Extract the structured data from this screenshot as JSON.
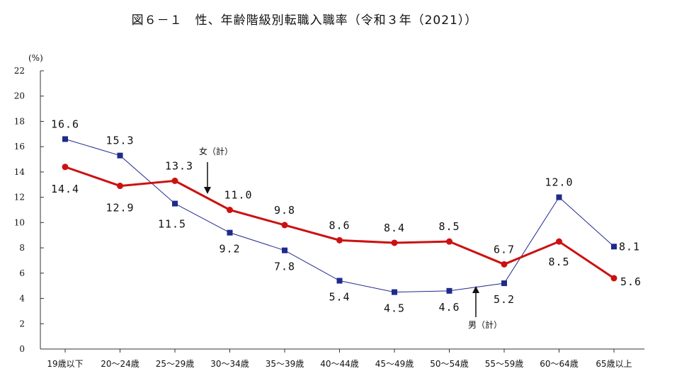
{
  "page": {
    "title": "図６－１　性、年齢階級別転職入職率（令和３年（2021））"
  },
  "chart_data": {
    "type": "line",
    "title": "図６－１　性、年齢階級別転職入職率（令和３年（2021））",
    "ylabel": "(%)",
    "ylim": [
      0,
      22
    ],
    "yticks": [
      0,
      2,
      4,
      6,
      8,
      10,
      12,
      14,
      16,
      18,
      20,
      22
    ],
    "grid": false,
    "categories": [
      "19歳以下",
      "20～24歳",
      "25～29歳",
      "30～34歳",
      "35～39歳",
      "40～44歳",
      "45～49歳",
      "50～54歳",
      "55～59歳",
      "60～64歳",
      "65歳以上"
    ],
    "series": [
      {
        "name": "男（計）",
        "color": "#1f2a8c",
        "marker": "square",
        "values": [
          16.6,
          15.3,
          11.5,
          9.2,
          7.8,
          5.4,
          4.5,
          4.6,
          5.2,
          12.0,
          8.1
        ],
        "labels": [
          "16.6",
          "15.3",
          "11.5",
          "9.2",
          "7.8",
          "5.4",
          "4.5",
          "4.6",
          "5.2",
          "12.0",
          "8.1"
        ]
      },
      {
        "name": "女（計）",
        "color": "#cc1111",
        "marker": "circle",
        "values": [
          14.4,
          12.9,
          13.3,
          11.0,
          9.8,
          8.6,
          8.4,
          8.5,
          6.7,
          8.5,
          5.6
        ],
        "labels": [
          "14.4",
          "12.9",
          "13.3",
          "11.0",
          "9.8",
          "8.6",
          "8.4",
          "8.5",
          "6.7",
          "8.5",
          "5.6"
        ]
      }
    ],
    "annotations": [
      {
        "text": "女（計）",
        "series": "女（計）",
        "arrow": "down"
      },
      {
        "text": "男（計）",
        "series": "男（計）",
        "arrow": "up"
      }
    ]
  }
}
